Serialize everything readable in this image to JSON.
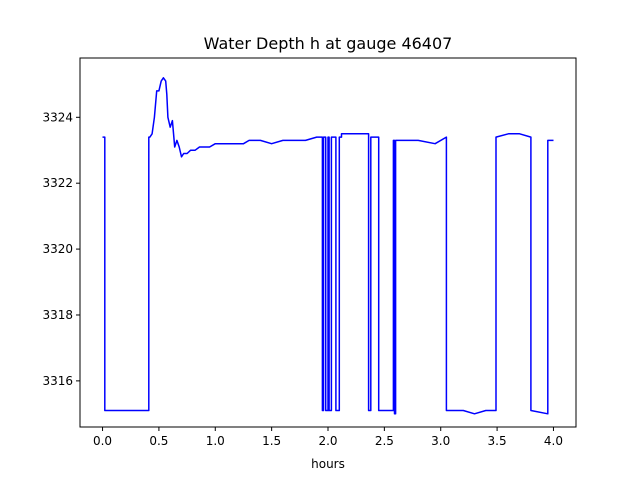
{
  "chart_data": {
    "type": "line",
    "title": "Water Depth h at gauge 46407",
    "xlabel": "hours",
    "ylabel": "",
    "xlim": [
      -0.2,
      4.2
    ],
    "ylim": [
      3314.6,
      3325.8
    ],
    "xticks": [
      0.0,
      0.5,
      1.0,
      1.5,
      2.0,
      2.5,
      3.0,
      3.5,
      4.0
    ],
    "xtick_labels": [
      "0.0",
      "0.5",
      "1.0",
      "1.5",
      "2.0",
      "2.5",
      "3.0",
      "3.5",
      "4.0"
    ],
    "yticks": [
      3316,
      3318,
      3320,
      3322,
      3324
    ],
    "ytick_labels": [
      "3316",
      "3318",
      "3320",
      "3322",
      "3324"
    ],
    "grid": false,
    "line_color": "#0000ff",
    "series": [
      {
        "name": "",
        "x": [
          0.0,
          0.02,
          0.02,
          0.2,
          0.41,
          0.41,
          0.42,
          0.44,
          0.46,
          0.48,
          0.5,
          0.52,
          0.54,
          0.56,
          0.57,
          0.58,
          0.6,
          0.62,
          0.64,
          0.66,
          0.68,
          0.7,
          0.72,
          0.75,
          0.78,
          0.82,
          0.86,
          0.9,
          0.95,
          1.0,
          1.05,
          1.1,
          1.15,
          1.2,
          1.25,
          1.3,
          1.35,
          1.4,
          1.5,
          1.6,
          1.7,
          1.8,
          1.9,
          1.95,
          1.95,
          1.96,
          1.96,
          1.98,
          1.98,
          2.0,
          2.0,
          2.01,
          2.01,
          2.03,
          2.03,
          2.07,
          2.07,
          2.1,
          2.1,
          2.12,
          2.12,
          2.25,
          2.36,
          2.36,
          2.38,
          2.38,
          2.39,
          2.39,
          2.45,
          2.45,
          2.58,
          2.58,
          2.59,
          2.59,
          2.6,
          2.6,
          2.62,
          2.62,
          2.65,
          2.8,
          2.95,
          3.05,
          3.05,
          3.1,
          3.2,
          3.3,
          3.4,
          3.49,
          3.49,
          3.6,
          3.7,
          3.8,
          3.8,
          3.95,
          3.95,
          4.0
        ],
        "y": [
          3323.4,
          3323.4,
          3315.1,
          3315.1,
          3315.1,
          3323.4,
          3323.4,
          3323.5,
          3324.0,
          3324.8,
          3324.8,
          3325.1,
          3325.2,
          3325.1,
          3324.7,
          3324.0,
          3323.7,
          3323.9,
          3323.1,
          3323.3,
          3323.1,
          3322.8,
          3322.9,
          3322.9,
          3323.0,
          3323.0,
          3323.1,
          3323.1,
          3323.1,
          3323.2,
          3323.2,
          3323.2,
          3323.2,
          3323.2,
          3323.2,
          3323.3,
          3323.3,
          3323.3,
          3323.2,
          3323.3,
          3323.3,
          3323.3,
          3323.4,
          3323.4,
          3315.1,
          3315.1,
          3323.4,
          3323.4,
          3315.1,
          3315.1,
          3323.4,
          3323.4,
          3315.1,
          3315.1,
          3323.4,
          3323.4,
          3315.1,
          3315.1,
          3323.4,
          3323.4,
          3323.5,
          3323.5,
          3323.5,
          3315.1,
          3315.1,
          3323.4,
          3323.4,
          3323.4,
          3323.4,
          3315.1,
          3315.1,
          3323.3,
          3323.3,
          3315.0,
          3315.0,
          3323.3,
          3323.3,
          3323.3,
          3323.3,
          3323.3,
          3323.2,
          3323.4,
          3315.1,
          3315.1,
          3315.1,
          3315.0,
          3315.1,
          3315.1,
          3323.4,
          3323.5,
          3323.5,
          3323.4,
          3315.1,
          3315.0,
          3323.3,
          3323.3
        ]
      }
    ]
  }
}
